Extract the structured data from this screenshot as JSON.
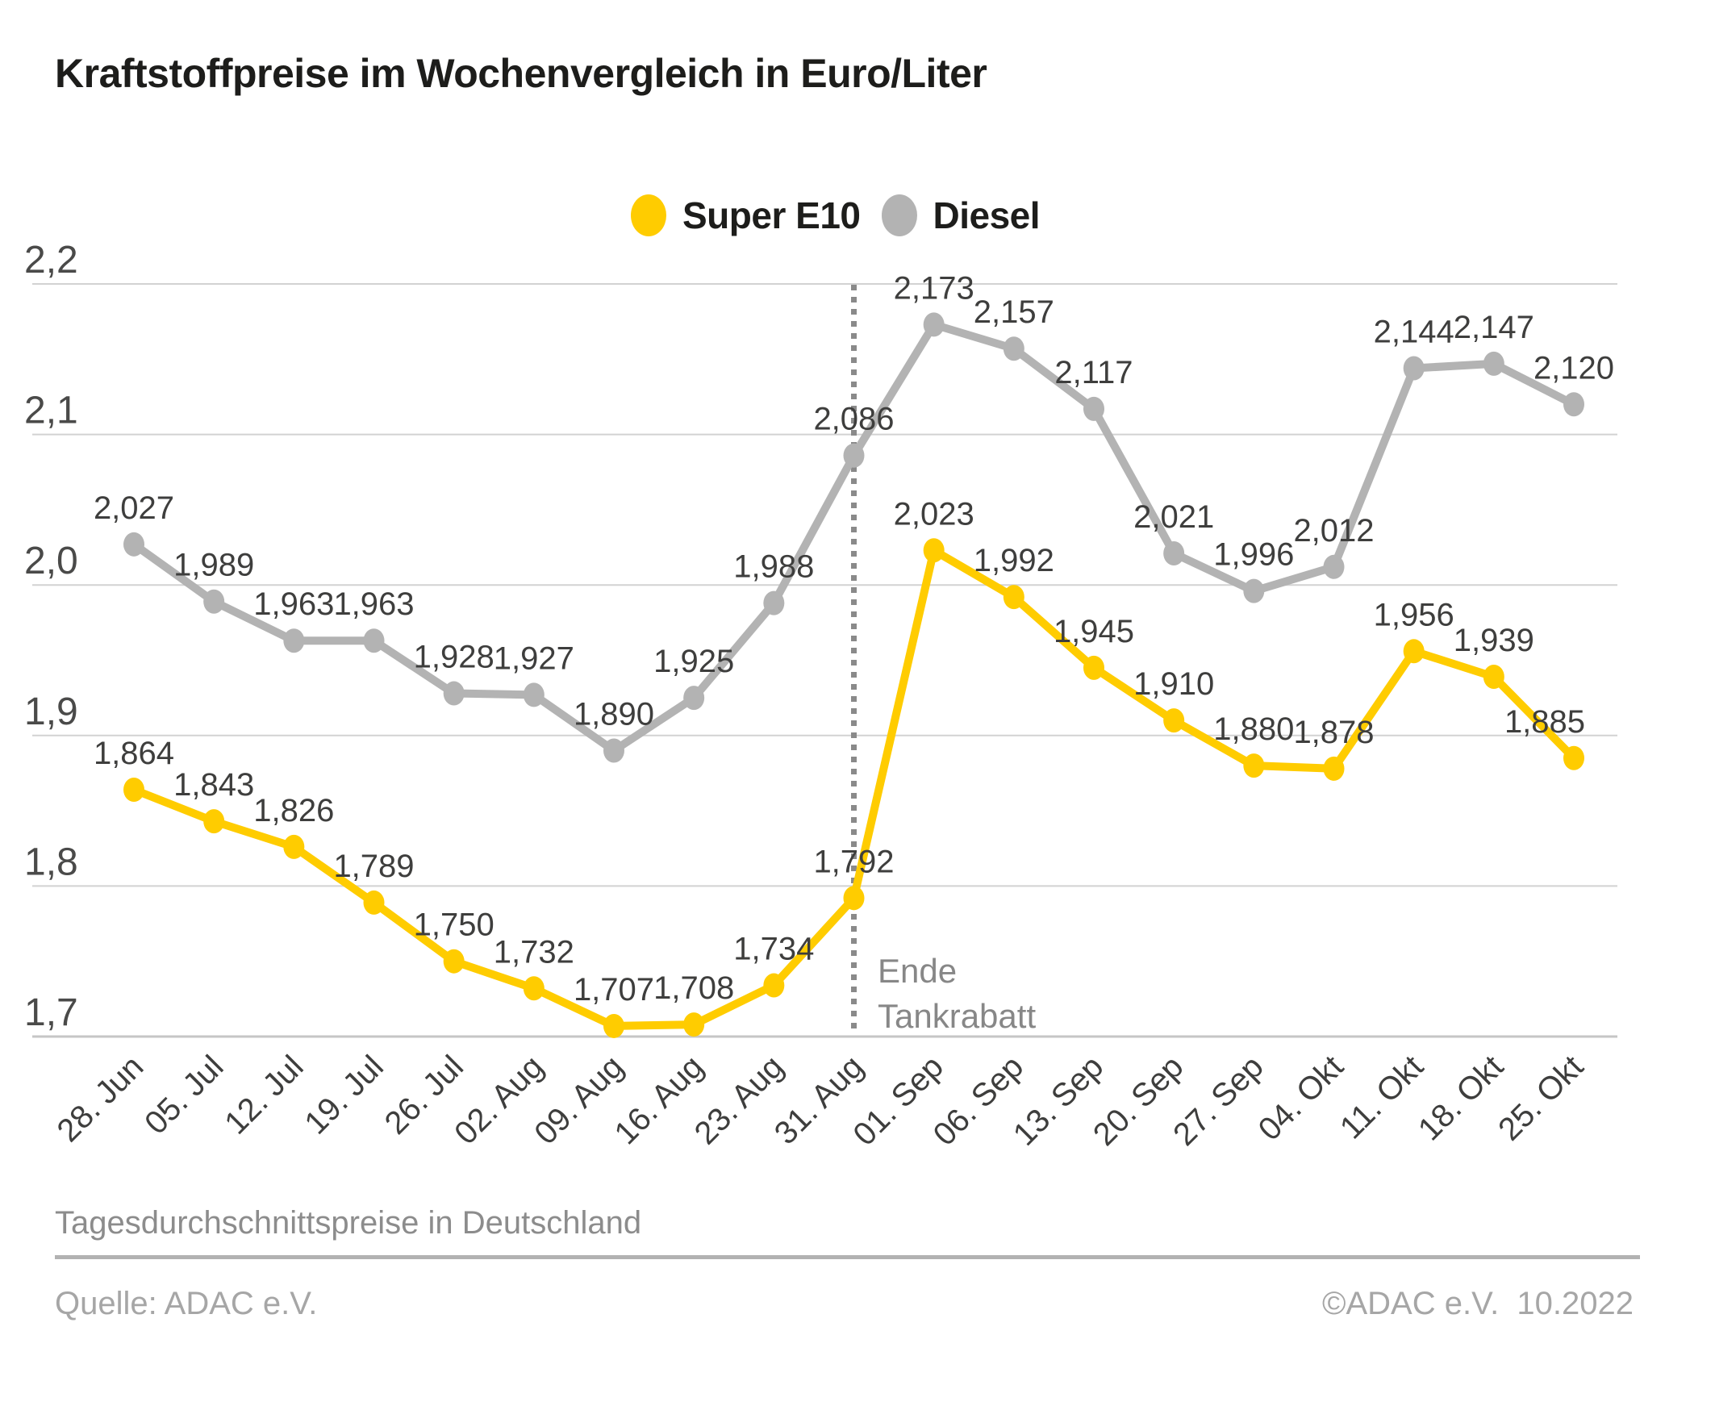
{
  "title": "Kraftstoffpreise im Wochenvergleich in Euro/Liter",
  "legend": {
    "items": [
      {
        "label": "Super E10",
        "color": "#FFCC00"
      },
      {
        "label": "Diesel",
        "color": "#B3B3B3"
      }
    ]
  },
  "annotation": {
    "line1": "Ende",
    "line2": "Tankrabatt"
  },
  "footer": {
    "note": "Tagesdurchschnittspreise in Deutschland",
    "source": "Quelle: ADAC e.V.",
    "copyright": "©ADAC e.V.  10.2022"
  },
  "chart_data": {
    "type": "line",
    "title": "Kraftstoffpreise im Wochenvergleich in Euro/Liter",
    "xlabel": "",
    "ylabel": "Euro/Liter",
    "ylim": [
      1.7,
      2.2
    ],
    "grid": true,
    "legend_position": "top-center",
    "x_tick_rotation": -45,
    "y_ticks": [
      {
        "value": 2.2,
        "label": "2,2"
      },
      {
        "value": 2.1,
        "label": "2,1"
      },
      {
        "value": 2.0,
        "label": "2,0"
      },
      {
        "value": 1.9,
        "label": "1,9"
      },
      {
        "value": 1.8,
        "label": "1,8"
      },
      {
        "value": 1.7,
        "label": "1,7"
      }
    ],
    "categories": [
      "28. Jun",
      "05. Jul",
      "12. Jul",
      "19. Jul",
      "26. Jul",
      "02. Aug",
      "09. Aug",
      "16. Aug",
      "23. Aug",
      "31. Aug",
      "01. Sep",
      "06. Sep",
      "13. Sep",
      "20. Sep",
      "27. Sep",
      "04. Okt",
      "11. Okt",
      "18. Okt",
      "25. Okt"
    ],
    "vline": {
      "category": "31. Aug",
      "label": [
        "Ende",
        "Tankrabatt"
      ],
      "style": "dotted",
      "color": "#8A8A8A"
    },
    "series": [
      {
        "name": "Diesel",
        "color": "#B3B3B3",
        "values": [
          2.027,
          1.989,
          1.963,
          1.963,
          1.928,
          1.927,
          1.89,
          1.925,
          1.988,
          2.086,
          2.173,
          2.157,
          2.117,
          2.021,
          1.996,
          2.012,
          2.144,
          2.147,
          2.12
        ],
        "labels": [
          "2,027",
          "1,989",
          "1,963",
          "1,963",
          "1,928",
          "1,927",
          "1,890",
          "1,925",
          "1,988",
          "2,086",
          "2,173",
          "2,157",
          "2,117",
          "2,021",
          "1,996",
          "2,012",
          "2,144",
          "2,147",
          "2,120"
        ],
        "label_dx": [
          0,
          0,
          0,
          0,
          0,
          0,
          0,
          0,
          0,
          0,
          0,
          0,
          0,
          0,
          0,
          0,
          0,
          0,
          0
        ]
      },
      {
        "name": "Super E10",
        "color": "#FFCC00",
        "values": [
          1.864,
          1.843,
          1.826,
          1.789,
          1.75,
          1.732,
          1.707,
          1.708,
          1.734,
          1.792,
          2.023,
          1.992,
          1.945,
          1.91,
          1.88,
          1.878,
          1.956,
          1.939,
          1.885
        ],
        "labels": [
          "1,864",
          "1,843",
          "1,826",
          "1,789",
          "1,750",
          "1,732",
          "1,707",
          "1,708",
          "1,734",
          "1,792",
          "2,023",
          "1,992",
          "1,945",
          "1,910",
          "1,880",
          "1,878",
          "1,956",
          "1,939",
          "1,885"
        ],
        "label_dx": [
          0,
          0,
          0,
          0,
          0,
          0,
          0,
          0,
          0,
          0,
          0,
          0,
          0,
          0,
          0,
          0,
          0,
          0,
          -36
        ]
      }
    ]
  }
}
